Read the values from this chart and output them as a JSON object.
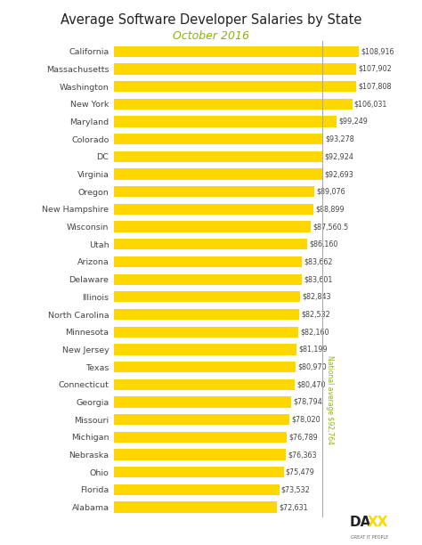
{
  "title": "Average Software Developer Salaries by State",
  "subtitle": "October 2016",
  "states": [
    "California",
    "Massachusetts",
    "Washington",
    "New York",
    "Maryland",
    "Colorado",
    "DC",
    "Virginia",
    "Oregon",
    "New Hampshire",
    "Wisconsin",
    "Utah",
    "Arizona",
    "Delaware",
    "Illinois",
    "North Carolina",
    "Minnesota",
    "New Jersey",
    "Texas",
    "Connecticut",
    "Georgia",
    "Missouri",
    "Michigan",
    "Nebraska",
    "Ohio",
    "Florida",
    "Alabama"
  ],
  "values": [
    108916,
    107902,
    107808,
    106031,
    99249,
    93278,
    92924,
    92693,
    89076,
    88899,
    87560.5,
    86160,
    83662,
    83601,
    82843,
    82532,
    82160,
    81199,
    80970,
    80470,
    78794,
    78020,
    76789,
    76363,
    75479,
    73532,
    72631
  ],
  "labels": [
    "$108,916",
    "$107,902",
    "$107,808",
    "$106,031",
    "$99,249",
    "$93,278",
    "$92,924",
    "$92,693",
    "$89,076",
    "$88,899",
    "$87,560.5",
    "$86,160",
    "$83,662",
    "$83,601",
    "$82,843",
    "$82,532",
    "$82,160",
    "$81,199",
    "$80,970",
    "$80,470",
    "$78,794",
    "$78,020",
    "$76,789",
    "$76,363",
    "$75,479",
    "$73,532",
    "$72,631"
  ],
  "bar_color": "#FFD700",
  "national_average": 92764,
  "national_avg_label": "National average $92,764",
  "title_color": "#222222",
  "subtitle_color": "#8DB600",
  "label_color": "#444444",
  "avg_line_color": "#AAAAAA",
  "avg_text_color": "#8DB600",
  "background_color": "#FFFFFF"
}
